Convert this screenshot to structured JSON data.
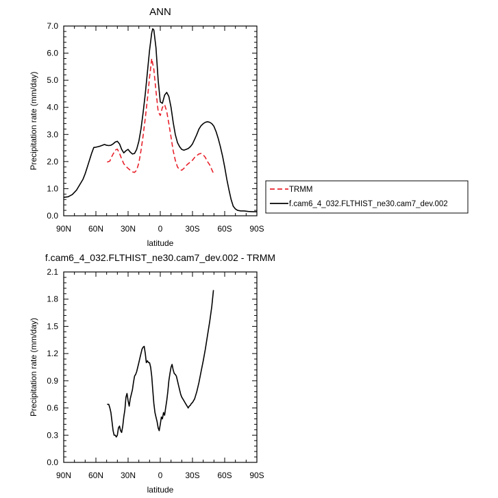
{
  "chart_data": [
    {
      "type": "line",
      "title": "ANN",
      "xlabel": "latitude",
      "ylabel": "Precipitation rate (mm/day)",
      "x_direction": "north-to-south",
      "xlim": [
        90,
        -90
      ],
      "ylim": [
        0,
        7
      ],
      "xtick_values": [
        90,
        60,
        30,
        0,
        -30,
        -60,
        -90
      ],
      "xtick_labels": [
        "90N",
        "60N",
        "30N",
        "0",
        "30S",
        "60S",
        "90S"
      ],
      "ytick_values": [
        0,
        1,
        2,
        3,
        4,
        5,
        6,
        7
      ],
      "ytick_labels": [
        "0.0",
        "1.0",
        "2.0",
        "3.0",
        "4.0",
        "5.0",
        "6.0",
        "7.0"
      ],
      "grid": false,
      "legend": "right",
      "series": [
        {
          "name": "TRMM",
          "color": "#e8202a",
          "dash": "dashed",
          "x": [
            49.5,
            47,
            45,
            42,
            40,
            38,
            36,
            34,
            32,
            30,
            28,
            26,
            24,
            22,
            20,
            18,
            16,
            14,
            12,
            10,
            8,
            6,
            4,
            2,
            0,
            -2,
            -4,
            -6,
            -8,
            -10,
            -12,
            -14,
            -16,
            -18,
            -20,
            -22,
            -24,
            -26,
            -28,
            -30,
            -32,
            -34,
            -36,
            -38,
            -40,
            -42,
            -44,
            -46,
            -48,
            -49.5
          ],
          "y": [
            1.98,
            2.02,
            2.2,
            2.42,
            2.46,
            2.3,
            2.1,
            1.92,
            1.82,
            1.75,
            1.68,
            1.62,
            1.6,
            1.68,
            1.95,
            2.4,
            2.95,
            3.6,
            4.3,
            5.1,
            5.8,
            5.4,
            4.6,
            3.85,
            3.7,
            4.0,
            4.1,
            3.85,
            3.4,
            2.9,
            2.4,
            2.05,
            1.8,
            1.7,
            1.68,
            1.75,
            1.85,
            1.92,
            1.98,
            2.05,
            2.15,
            2.22,
            2.28,
            2.3,
            2.25,
            2.15,
            2.0,
            1.88,
            1.7,
            1.57
          ]
        },
        {
          "name": "f.cam6_4_032.FLTHIST_ne30.cam7_dev.002",
          "color": "#000000",
          "dash": "solid",
          "x": [
            90,
            86,
            82,
            78,
            75,
            72,
            70,
            68,
            66,
            64,
            62,
            60,
            58,
            56,
            54,
            52,
            50,
            48,
            46,
            44,
            42,
            40,
            38,
            36,
            34,
            32,
            30,
            28,
            26,
            24,
            22,
            20,
            18,
            16,
            14,
            12,
            10,
            8,
            7,
            6,
            4,
            2,
            0,
            -2,
            -4,
            -6,
            -8,
            -10,
            -12,
            -14,
            -16,
            -18,
            -20,
            -22,
            -24,
            -26,
            -28,
            -30,
            -32,
            -34,
            -36,
            -38,
            -40,
            -42,
            -44,
            -46,
            -48,
            -50,
            -52,
            -54,
            -56,
            -58,
            -60,
            -62,
            -64,
            -66,
            -68,
            -70,
            -72,
            -75,
            -78,
            -82,
            -86,
            -90
          ],
          "y": [
            0.68,
            0.7,
            0.78,
            0.95,
            1.15,
            1.35,
            1.55,
            1.8,
            2.05,
            2.3,
            2.52,
            2.53,
            2.55,
            2.57,
            2.6,
            2.63,
            2.6,
            2.59,
            2.6,
            2.65,
            2.72,
            2.75,
            2.65,
            2.45,
            2.32,
            2.4,
            2.45,
            2.35,
            2.28,
            2.3,
            2.45,
            2.75,
            3.2,
            3.8,
            4.5,
            5.3,
            6.1,
            6.75,
            6.9,
            6.85,
            6.2,
            5.0,
            4.2,
            4.15,
            4.45,
            4.55,
            4.4,
            4.0,
            3.45,
            3.0,
            2.7,
            2.55,
            2.45,
            2.42,
            2.45,
            2.48,
            2.55,
            2.65,
            2.82,
            3.0,
            3.2,
            3.32,
            3.4,
            3.45,
            3.47,
            3.45,
            3.4,
            3.3,
            3.1,
            2.85,
            2.55,
            2.2,
            1.8,
            1.35,
            0.95,
            0.6,
            0.35,
            0.25,
            0.2,
            0.18,
            0.18,
            0.16,
            0.15,
            0.15
          ]
        }
      ]
    },
    {
      "type": "line",
      "title": "f.cam6_4_032.FLTHIST_ne30.cam7_dev.002 - TRMM",
      "xlabel": "latitude",
      "ylabel": "Precipitation rate (mm/day)",
      "x_direction": "north-to-south",
      "xlim": [
        90,
        -90
      ],
      "ylim": [
        0,
        2.1
      ],
      "xtick_values": [
        90,
        60,
        30,
        0,
        -30,
        -60,
        -90
      ],
      "xtick_labels": [
        "90N",
        "60N",
        "30N",
        "0",
        "30S",
        "60S",
        "90S"
      ],
      "ytick_values": [
        0,
        0.3,
        0.6,
        0.9,
        1.2,
        1.5,
        1.8,
        2.1
      ],
      "ytick_labels": [
        "0.0",
        "0.3",
        "0.6",
        "0.9",
        "1.2",
        "1.5",
        "1.8",
        "2.1"
      ],
      "grid": false,
      "series": [
        {
          "color": "#000000",
          "dash": "solid",
          "x": [
            49.5,
            48,
            47,
            46,
            45,
            44,
            43,
            42,
            41,
            40,
            39,
            38,
            37,
            36,
            35,
            34,
            33,
            32,
            31,
            30,
            29,
            28,
            27,
            26,
            25,
            24,
            23,
            22,
            21,
            20,
            19,
            18,
            17,
            16,
            15,
            14,
            13,
            12,
            11,
            10,
            9,
            8,
            7,
            6,
            5,
            4,
            3,
            2,
            1,
            0,
            -1,
            -2,
            -3,
            -4,
            -5,
            -6,
            -7,
            -8,
            -9,
            -10,
            -11,
            -12,
            -13,
            -14,
            -15,
            -16,
            -17,
            -18,
            -19,
            -20,
            -21,
            -22,
            -23,
            -24,
            -25,
            -26,
            -27,
            -28,
            -29,
            -30,
            -32,
            -34,
            -36,
            -38,
            -40,
            -42,
            -44,
            -46,
            -48,
            -49.5
          ],
          "y": [
            0.64,
            0.64,
            0.6,
            0.55,
            0.45,
            0.35,
            0.3,
            0.3,
            0.28,
            0.3,
            0.38,
            0.4,
            0.35,
            0.33,
            0.4,
            0.5,
            0.58,
            0.72,
            0.76,
            0.68,
            0.62,
            0.7,
            0.75,
            0.8,
            0.88,
            0.95,
            0.97,
            1.0,
            1.05,
            1.1,
            1.15,
            1.2,
            1.25,
            1.27,
            1.28,
            1.2,
            1.1,
            1.12,
            1.1,
            1.1,
            1.05,
            0.95,
            0.8,
            0.65,
            0.55,
            0.5,
            0.45,
            0.38,
            0.35,
            0.42,
            0.5,
            0.48,
            0.55,
            0.52,
            0.6,
            0.68,
            0.78,
            0.9,
            0.98,
            1.05,
            1.08,
            1.02,
            0.98,
            0.97,
            0.95,
            0.9,
            0.85,
            0.8,
            0.75,
            0.72,
            0.7,
            0.68,
            0.66,
            0.64,
            0.62,
            0.6,
            0.62,
            0.63,
            0.65,
            0.66,
            0.7,
            0.78,
            0.88,
            1.0,
            1.12,
            1.25,
            1.4,
            1.55,
            1.72,
            1.9
          ]
        }
      ]
    }
  ]
}
